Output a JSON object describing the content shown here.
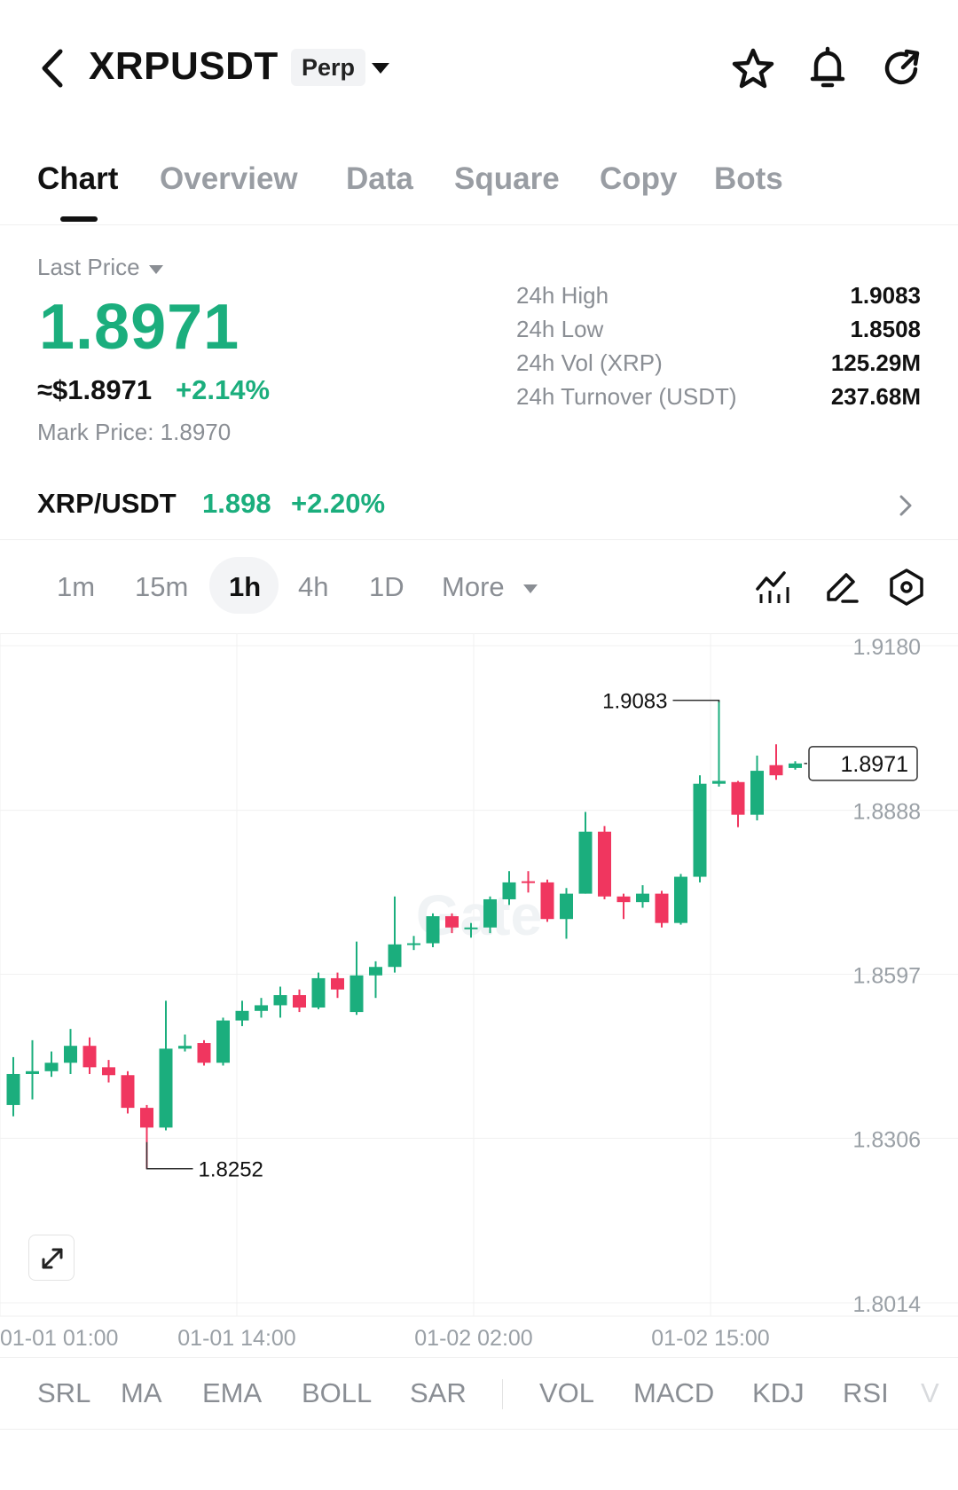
{
  "header": {
    "symbol": "XRPUSDT",
    "contract_type": "Perp",
    "icons": [
      "back-arrow-icon",
      "caret-down-icon",
      "star-icon",
      "bell-icon",
      "refresh-icon"
    ]
  },
  "tabs": [
    {
      "label": "Chart",
      "active": true
    },
    {
      "label": "Overview"
    },
    {
      "label": "Data"
    },
    {
      "label": "Square"
    },
    {
      "label": "Copy"
    },
    {
      "label": "Bots"
    }
  ],
  "price": {
    "last_price_label": "Last Price",
    "last_price": "1.8971",
    "usd_price": "≈$1.8971",
    "change_pct": "+2.14%",
    "mark_price": "Mark Price:  1.8970"
  },
  "stats": [
    {
      "label": "24h  High",
      "value": "1.9083"
    },
    {
      "label": "24h  Low",
      "value": "1.8508"
    },
    {
      "label": "24h  Vol (XRP)",
      "value": "125.29M"
    },
    {
      "label": "24h  Turnover (USDT)",
      "value": "237.68M"
    }
  ],
  "spot": {
    "pair": "XRP/USDT",
    "price": "1.898",
    "change": "+2.20%"
  },
  "intervals": [
    {
      "label": "1m"
    },
    {
      "label": "15m"
    },
    {
      "label": "1h",
      "active": true
    },
    {
      "label": "4h"
    },
    {
      "label": "1D"
    },
    {
      "label": "More"
    }
  ],
  "colors": {
    "up": "#1bae7d",
    "down": "#f0365f",
    "muted": "#8a8e94"
  },
  "chart_data": {
    "type": "candlestick",
    "y_ticks": [
      "1.9180",
      "1.8888",
      "1.8597",
      "1.8306",
      "1.8014"
    ],
    "x_ticks": [
      "01-01 01:00",
      "01-01 14:00",
      "01-02 02:00",
      "01-02 15:00"
    ],
    "ylim": [
      1.8014,
      1.918
    ],
    "high_marker": "1.9083",
    "low_marker": "1.8252",
    "current_price": "1.8971",
    "watermark": "Gate",
    "candles": [
      {
        "o": 1.8365,
        "c": 1.842,
        "h": 1.845,
        "l": 1.8345
      },
      {
        "o": 1.842,
        "c": 1.8425,
        "h": 1.848,
        "l": 1.8375
      },
      {
        "o": 1.8425,
        "c": 1.844,
        "h": 1.846,
        "l": 1.8415
      },
      {
        "o": 1.844,
        "c": 1.847,
        "h": 1.85,
        "l": 1.842
      },
      {
        "o": 1.847,
        "c": 1.8432,
        "h": 1.8485,
        "l": 1.842
      },
      {
        "o": 1.8432,
        "c": 1.8418,
        "h": 1.8445,
        "l": 1.8405
      },
      {
        "o": 1.8418,
        "c": 1.836,
        "h": 1.8425,
        "l": 1.835
      },
      {
        "o": 1.836,
        "c": 1.8325,
        "h": 1.8365,
        "l": 1.8252
      },
      {
        "o": 1.8325,
        "c": 1.8465,
        "h": 1.855,
        "l": 1.832
      },
      {
        "o": 1.8465,
        "c": 1.847,
        "h": 1.849,
        "l": 1.846
      },
      {
        "o": 1.8475,
        "c": 1.844,
        "h": 1.848,
        "l": 1.8435
      },
      {
        "o": 1.844,
        "c": 1.8515,
        "h": 1.852,
        "l": 1.8435
      },
      {
        "o": 1.8515,
        "c": 1.8532,
        "h": 1.855,
        "l": 1.8505
      },
      {
        "o": 1.8532,
        "c": 1.8542,
        "h": 1.8555,
        "l": 1.852
      },
      {
        "o": 1.8542,
        "c": 1.856,
        "h": 1.8575,
        "l": 1.852
      },
      {
        "o": 1.856,
        "c": 1.8538,
        "h": 1.857,
        "l": 1.853
      },
      {
        "o": 1.8538,
        "c": 1.859,
        "h": 1.86,
        "l": 1.8535
      },
      {
        "o": 1.859,
        "c": 1.857,
        "h": 1.86,
        "l": 1.8555
      },
      {
        "o": 1.853,
        "c": 1.8595,
        "h": 1.8655,
        "l": 1.8525
      },
      {
        "o": 1.8595,
        "c": 1.861,
        "h": 1.862,
        "l": 1.8555
      },
      {
        "o": 1.861,
        "c": 1.865,
        "h": 1.8735,
        "l": 1.86
      },
      {
        "o": 1.865,
        "c": 1.8652,
        "h": 1.8665,
        "l": 1.864
      },
      {
        "o": 1.8652,
        "c": 1.87,
        "h": 1.8705,
        "l": 1.8645
      },
      {
        "o": 1.87,
        "c": 1.868,
        "h": 1.8705,
        "l": 1.867
      },
      {
        "o": 1.868,
        "c": 1.868,
        "h": 1.8688,
        "l": 1.8662
      },
      {
        "o": 1.868,
        "c": 1.873,
        "h": 1.8735,
        "l": 1.867
      },
      {
        "o": 1.873,
        "c": 1.876,
        "h": 1.878,
        "l": 1.872
      },
      {
        "o": 1.8762,
        "c": 1.876,
        "h": 1.878,
        "l": 1.8742
      },
      {
        "o": 1.876,
        "c": 1.8695,
        "h": 1.8765,
        "l": 1.869
      },
      {
        "o": 1.8695,
        "c": 1.874,
        "h": 1.875,
        "l": 1.866
      },
      {
        "o": 1.874,
        "c": 1.885,
        "h": 1.8885,
        "l": 1.874
      },
      {
        "o": 1.885,
        "c": 1.8735,
        "h": 1.886,
        "l": 1.873
      },
      {
        "o": 1.8735,
        "c": 1.8725,
        "h": 1.874,
        "l": 1.8695
      },
      {
        "o": 1.8725,
        "c": 1.874,
        "h": 1.8755,
        "l": 1.8715
      },
      {
        "o": 1.874,
        "c": 1.8688,
        "h": 1.8745,
        "l": 1.868
      },
      {
        "o": 1.8688,
        "c": 1.877,
        "h": 1.8775,
        "l": 1.8685
      },
      {
        "o": 1.877,
        "c": 1.8935,
        "h": 1.895,
        "l": 1.876
      },
      {
        "o": 1.8935,
        "c": 1.894,
        "h": 1.9083,
        "l": 1.893
      },
      {
        "o": 1.8938,
        "c": 1.888,
        "h": 1.894,
        "l": 1.8858
      },
      {
        "o": 1.888,
        "c": 1.8958,
        "h": 1.8985,
        "l": 1.887
      },
      {
        "o": 1.8968,
        "c": 1.895,
        "h": 1.9005,
        "l": 1.8942
      },
      {
        "o": 1.8963,
        "c": 1.8971,
        "h": 1.8975,
        "l": 1.896
      }
    ]
  },
  "indicators": [
    {
      "label": "SRL"
    },
    {
      "label": "MA"
    },
    {
      "label": "EMA"
    },
    {
      "label": "BOLL"
    },
    {
      "label": "SAR"
    },
    {
      "label": "VOL"
    },
    {
      "label": "MACD"
    },
    {
      "label": "KDJ"
    },
    {
      "label": "RSI"
    },
    {
      "label": "V"
    }
  ]
}
